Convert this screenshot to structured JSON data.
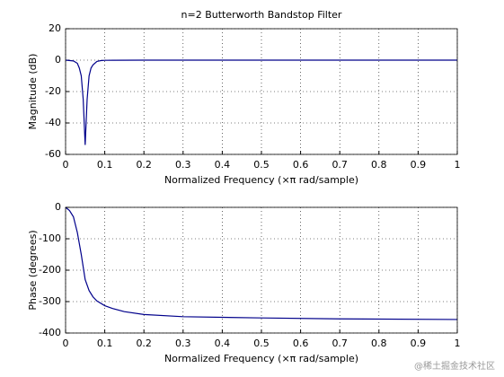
{
  "chart_data": [
    {
      "type": "line",
      "title": "n=2 Butterworth Bandstop Filter",
      "xlabel": "Normalized Frequency  (×π rad/sample)",
      "ylabel": "Magnitude (dB)",
      "x": [
        0,
        0.02,
        0.03,
        0.035,
        0.04,
        0.045,
        0.05,
        0.055,
        0.06,
        0.065,
        0.07,
        0.08,
        0.09,
        0.1,
        0.2,
        0.5,
        1
      ],
      "values": [
        0,
        -0.5,
        -2,
        -5,
        -10,
        -25,
        -54,
        -25,
        -10,
        -5,
        -3,
        -0.8,
        -0.3,
        -0.1,
        0,
        0,
        0
      ],
      "color": "#00008b",
      "xlim": [
        0,
        1
      ],
      "ylim": [
        -60,
        20
      ],
      "xticks": [
        0,
        0.1,
        0.2,
        0.3,
        0.4,
        0.5,
        0.6,
        0.7,
        0.8,
        0.9,
        1
      ],
      "yticks": [
        -60,
        -40,
        -20,
        0,
        20
      ],
      "grid": true
    },
    {
      "type": "line",
      "xlabel": "Normalized Frequency  (×π rad/sample)",
      "ylabel": "Phase (degrees)",
      "x": [
        0,
        0.01,
        0.02,
        0.03,
        0.04,
        0.05,
        0.06,
        0.07,
        0.08,
        0.1,
        0.12,
        0.15,
        0.2,
        0.3,
        0.5,
        0.7,
        1
      ],
      "values": [
        0,
        -10,
        -30,
        -80,
        -150,
        -230,
        -265,
        -285,
        -298,
        -313,
        -322,
        -332,
        -341,
        -348,
        -352,
        -355,
        -357
      ],
      "color": "#00008b",
      "xlim": [
        0,
        1
      ],
      "ylim": [
        -400,
        0
      ],
      "xticks": [
        0,
        0.1,
        0.2,
        0.3,
        0.4,
        0.5,
        0.6,
        0.7,
        0.8,
        0.9,
        1
      ],
      "yticks": [
        -400,
        -300,
        -200,
        -100,
        0
      ],
      "grid": true
    }
  ],
  "watermark": "@稀土掘金技术社区"
}
